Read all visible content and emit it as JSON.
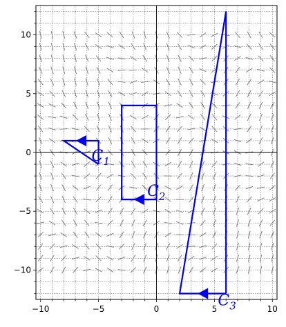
{
  "chart_data": {
    "type": "line",
    "title": "",
    "xlabel": "",
    "ylabel": "",
    "xlim": [
      -10.4,
      10.4
    ],
    "ylim": [
      -12.5,
      12.5
    ],
    "grid": true,
    "xticks": [
      -10,
      -5,
      0,
      5,
      10
    ],
    "xtick_labels": [
      "−10",
      "−5",
      "0",
      "5",
      "10"
    ],
    "yticks": [
      -10,
      -5,
      0,
      5,
      10
    ],
    "ytick_labels": [
      "−10",
      "−5",
      "0",
      "5",
      "10"
    ],
    "minor_step": 1,
    "field": {
      "description": "slope field",
      "x_range": [
        -10,
        10
      ],
      "y_range": [
        -10,
        10
      ],
      "step": 1,
      "color": "#777777"
    },
    "curves": [
      {
        "label_main": "C",
        "label_sub": "1",
        "color": "#0000ee",
        "x": [
          -5,
          -8,
          -5,
          -5
        ],
        "y": [
          -1,
          1,
          1,
          -1
        ],
        "arrow": {
          "x": -6.5,
          "y": 1,
          "direction": "left"
        },
        "label_pos": {
          "x": -5.6,
          "y": -0.7
        }
      },
      {
        "label_main": "C",
        "label_sub": "2",
        "color": "#0000ee",
        "x": [
          0,
          0,
          -3,
          -3,
          0
        ],
        "y": [
          -4,
          4,
          4,
          -4,
          -4
        ],
        "arrow": {
          "x": -1.5,
          "y": -4,
          "direction": "left"
        },
        "label_pos": {
          "x": -0.8,
          "y": -3.7
        }
      },
      {
        "label_main": "C",
        "label_sub": "3",
        "color": "#0000ee",
        "x": [
          6,
          6,
          2,
          6
        ],
        "y": [
          -12,
          12,
          -12,
          -12
        ],
        "arrow": {
          "x": 4,
          "y": -12,
          "direction": "left"
        },
        "label_pos": {
          "x": 5.3,
          "y": -13.0
        }
      }
    ]
  }
}
